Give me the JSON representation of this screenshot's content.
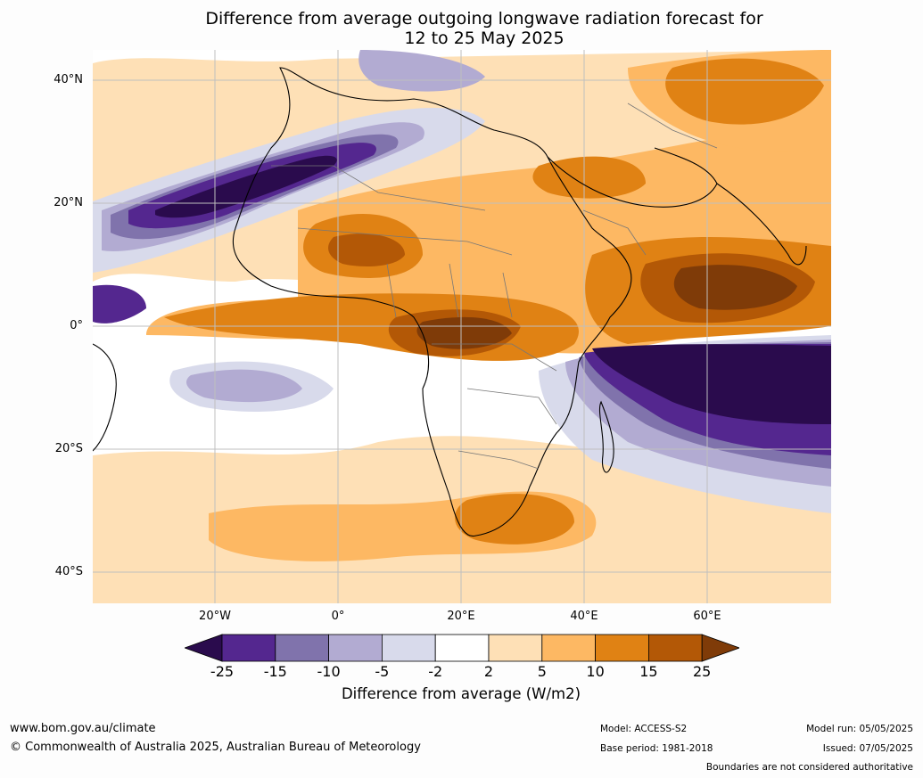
{
  "title_line1": "Difference from average outgoing longwave radiation forecast for",
  "title_line2": "12 to 25 May 2025",
  "lat_labels": [
    "40°N",
    "20°N",
    "0°",
    "20°S",
    "40°S"
  ],
  "lon_labels": [
    "20°W",
    "0°",
    "20°E",
    "40°E",
    "60°E"
  ],
  "legend": {
    "title": "Difference from average (W/m2)",
    "ticks": [
      "-25",
      "-15",
      "-10",
      "-5",
      "-2",
      "2",
      "5",
      "10",
      "15",
      "25"
    ],
    "colors": [
      "#2a0b4d",
      "#54278f",
      "#8073ac",
      "#b2abd2",
      "#d8daeb",
      "#ffffff",
      "#fee0b6",
      "#fdb863",
      "#e08214",
      "#b35806",
      "#7f3b08"
    ]
  },
  "footer": {
    "url": "www.bom.gov.au/climate",
    "copyright": "© Commonwealth of Australia 2025, Australian Bureau of Meteorology",
    "model": "Model: ACCESS-S2",
    "base_period": "Base period: 1981-2018",
    "model_run": "Model run: 05/05/2025",
    "issued": "Issued: 07/05/2025",
    "disclaimer": "Boundaries are not considered authoritative"
  }
}
